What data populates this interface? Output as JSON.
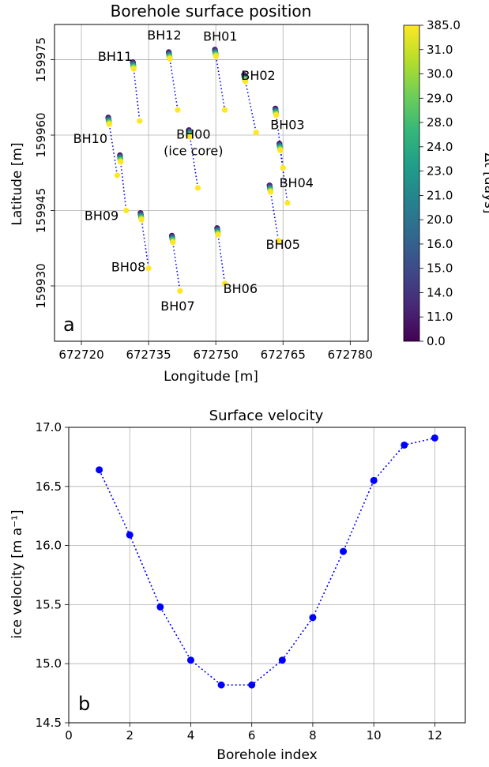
{
  "chart_data": [
    {
      "type": "scatter",
      "panel_label": "a",
      "title": "Borehole surface position",
      "xlabel": "Longitude [m]",
      "ylabel": "Latitude [m]",
      "xlim": [
        672714,
        672784
      ],
      "ylim": [
        159919,
        159982
      ],
      "xticks": [
        672720,
        672735,
        672750,
        672765,
        672780
      ],
      "yticks": [
        159930,
        159945,
        159960,
        159975
      ],
      "grid": true,
      "colorbar": {
        "label": "Δt [days]",
        "tick_labels": [
          "0.0",
          "11.0",
          "14.0",
          "15.0",
          "16.0",
          "20.0",
          "21.0",
          "23.0",
          "24.0",
          "28.0",
          "29.0",
          "30.0",
          "31.0",
          "385.0"
        ],
        "colors": [
          "#440154",
          "#482878",
          "#3e4989",
          "#31688e",
          "#26828e",
          "#1f9e89",
          "#35b779",
          "#6ece58",
          "#b5de2b",
          "#fde725"
        ],
        "end_color": "#fde725"
      },
      "line_color": "#0000ee",
      "boreholes": [
        {
          "name": "BH01",
          "start": [
            672749.8,
            159977.0
          ],
          "end": [
            672752.0,
            159965.0
          ]
        },
        {
          "name": "BH02",
          "start": [
            672756.3,
            159972.0
          ],
          "end": [
            672759.0,
            159960.5
          ]
        },
        {
          "name": "BH03",
          "start": [
            672763.3,
            159965.3
          ],
          "end": [
            672765.0,
            159953.5
          ]
        },
        {
          "name": "BH04",
          "start": [
            672764.2,
            159958.3
          ],
          "end": [
            672766.0,
            159946.5
          ]
        },
        {
          "name": "BH05",
          "start": [
            672762.0,
            159950.0
          ],
          "end": [
            672764.0,
            159939.0
          ]
        },
        {
          "name": "BH06",
          "start": [
            672750.3,
            159941.5
          ],
          "end": [
            672752.0,
            159930.5
          ]
        },
        {
          "name": "BH07",
          "start": [
            672740.2,
            159940.0
          ],
          "end": [
            672742.0,
            159929.0
          ]
        },
        {
          "name": "BH08",
          "start": [
            672733.2,
            159944.5
          ],
          "end": [
            672735.0,
            159933.5
          ]
        },
        {
          "name": "BH09",
          "start": [
            672728.6,
            159956.0
          ],
          "end": [
            672730.0,
            159945.0
          ]
        },
        {
          "name": "BH10",
          "start": [
            672726.0,
            159963.5
          ],
          "end": [
            672728.0,
            159952.0
          ]
        },
        {
          "name": "BH11",
          "start": [
            672731.5,
            159974.5
          ],
          "end": [
            672733.0,
            159962.8
          ]
        },
        {
          "name": "BH12",
          "start": [
            672739.5,
            159976.5
          ],
          "end": [
            672741.5,
            159965.0
          ]
        },
        {
          "name": "BH00",
          "start": [
            672744.0,
            159961.0
          ],
          "end": [
            672746.0,
            159949.5
          ]
        }
      ],
      "labels": [
        {
          "text": "BH12",
          "xy": [
            672738.5,
            159979.0
          ]
        },
        {
          "text": "BH01",
          "xy": [
            672751.0,
            159978.8
          ]
        },
        {
          "text": "BH11",
          "xy": [
            672727.5,
            159974.8
          ]
        },
        {
          "text": "BH02",
          "xy": [
            672759.5,
            159971.0
          ]
        },
        {
          "text": "BH03",
          "xy": [
            672766.0,
            159961.2
          ]
        },
        {
          "text": "BH00",
          "xy": [
            672745.0,
            159959.3
          ]
        },
        {
          "text": "(ice core)",
          "xy": [
            672745.0,
            159956.0
          ]
        },
        {
          "text": "BH10",
          "xy": [
            672722.0,
            159958.4
          ]
        },
        {
          "text": "BH04",
          "xy": [
            672768.0,
            159949.6
          ]
        },
        {
          "text": "BH09",
          "xy": [
            672724.5,
            159943.1
          ]
        },
        {
          "text": "BH05",
          "xy": [
            672765.0,
            159937.4
          ]
        },
        {
          "text": "BH08",
          "xy": [
            672730.5,
            159932.9
          ]
        },
        {
          "text": "BH06",
          "xy": [
            672755.5,
            159928.6
          ]
        },
        {
          "text": "BH07",
          "xy": [
            672741.5,
            159925.1
          ]
        }
      ]
    },
    {
      "type": "line",
      "panel_label": "b",
      "title": "Surface velocity",
      "xlabel": "Borehole index",
      "ylabel": "ice velocity [m a⁻¹]",
      "xlim": [
        0,
        13
      ],
      "ylim": [
        14.5,
        17.0
      ],
      "xticks": [
        0,
        2,
        4,
        6,
        8,
        10,
        12
      ],
      "yticks": [
        14.5,
        15.0,
        15.5,
        16.0,
        16.5,
        17.0
      ],
      "grid": true,
      "color": "#0000ff",
      "x": [
        1,
        2,
        3,
        4,
        5,
        6,
        7,
        8,
        9,
        10,
        11,
        12
      ],
      "y": [
        16.64,
        16.09,
        15.48,
        15.03,
        14.82,
        14.82,
        15.03,
        15.39,
        15.95,
        16.55,
        16.85,
        16.91
      ]
    }
  ]
}
